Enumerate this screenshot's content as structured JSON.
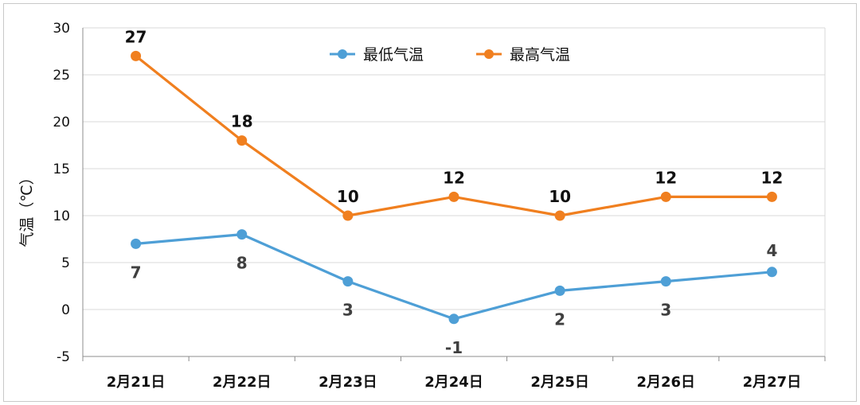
{
  "chart_data": {
    "type": "line",
    "categories": [
      "2月21日",
      "2月22日",
      "2月23日",
      "2月24日",
      "2月25日",
      "2月26日",
      "2月27日"
    ],
    "series": [
      {
        "name": "最低气温",
        "color": "#4e9fd6",
        "values": [
          7,
          8,
          3,
          -1,
          2,
          3,
          4
        ]
      },
      {
        "name": "最高气温",
        "color": "#f07f1f",
        "values": [
          27,
          18,
          10,
          12,
          10,
          12,
          12
        ]
      }
    ],
    "title": "",
    "xlabel": "",
    "ylabel": "气温（℃）",
    "ylim": [
      -5,
      30
    ],
    "yticks": [
      "-5",
      "0",
      "5",
      "10",
      "15",
      "20",
      "25",
      "30"
    ],
    "grid": true,
    "legend_position": "top-center",
    "data_labels": {
      "low": [
        "7",
        "8",
        "3",
        "-1",
        "2",
        "3",
        "4"
      ],
      "high": [
        "27",
        "18",
        "10",
        "12",
        "10",
        "12",
        "12"
      ]
    }
  }
}
